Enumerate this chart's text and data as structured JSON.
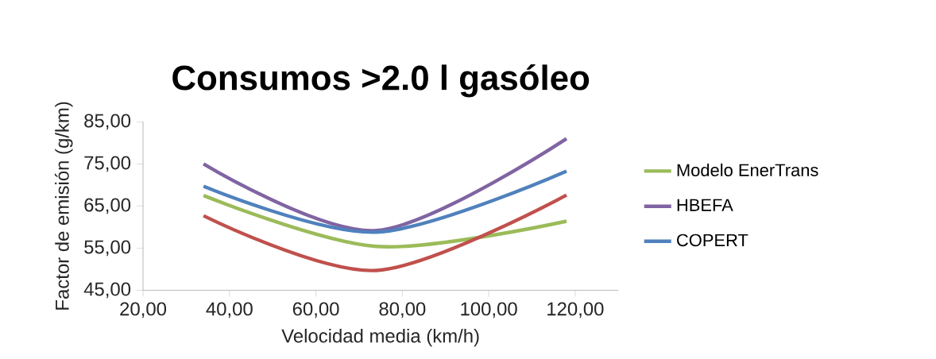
{
  "chart_data": {
    "type": "line",
    "title": "Consumos >2.0 l gasóleo",
    "xlabel": "Velocidad media (km/h)",
    "ylabel": "Factor de emisión (g/km)",
    "x": [
      34,
      74,
      118
    ],
    "series": [
      {
        "name": "Modelo EnerTrans",
        "color": "#9bbb59",
        "values": [
          67.5,
          55.4,
          61.4
        ]
      },
      {
        "name": "HBEFA",
        "color": "#8064a2",
        "values": [
          75.0,
          59.2,
          81.0
        ]
      },
      {
        "name": "COPERT",
        "color": "#4f81bd",
        "values": [
          69.7,
          58.8,
          73.3
        ]
      },
      {
        "color": "#c0504d",
        "values": [
          62.7,
          49.7,
          67.6
        ]
      }
    ],
    "xlim": [
      20,
      130
    ],
    "ylim": [
      45,
      85
    ],
    "xticks": [
      {
        "value": 20,
        "label": "20,00"
      },
      {
        "value": 40,
        "label": "40,00"
      },
      {
        "value": 60,
        "label": "60,00"
      },
      {
        "value": 80,
        "label": "80,00"
      },
      {
        "value": 100,
        "label": "100,00"
      },
      {
        "value": 120,
        "label": "120,00"
      }
    ],
    "yticks": [
      {
        "value": 45,
        "label": "45,00"
      },
      {
        "value": 55,
        "label": "55,00"
      },
      {
        "value": 65,
        "label": "65,00"
      },
      {
        "value": 75,
        "label": "75,00"
      },
      {
        "value": 85,
        "label": "85,00"
      }
    ],
    "legend": "right",
    "marker": "none",
    "line_style": "solid"
  }
}
